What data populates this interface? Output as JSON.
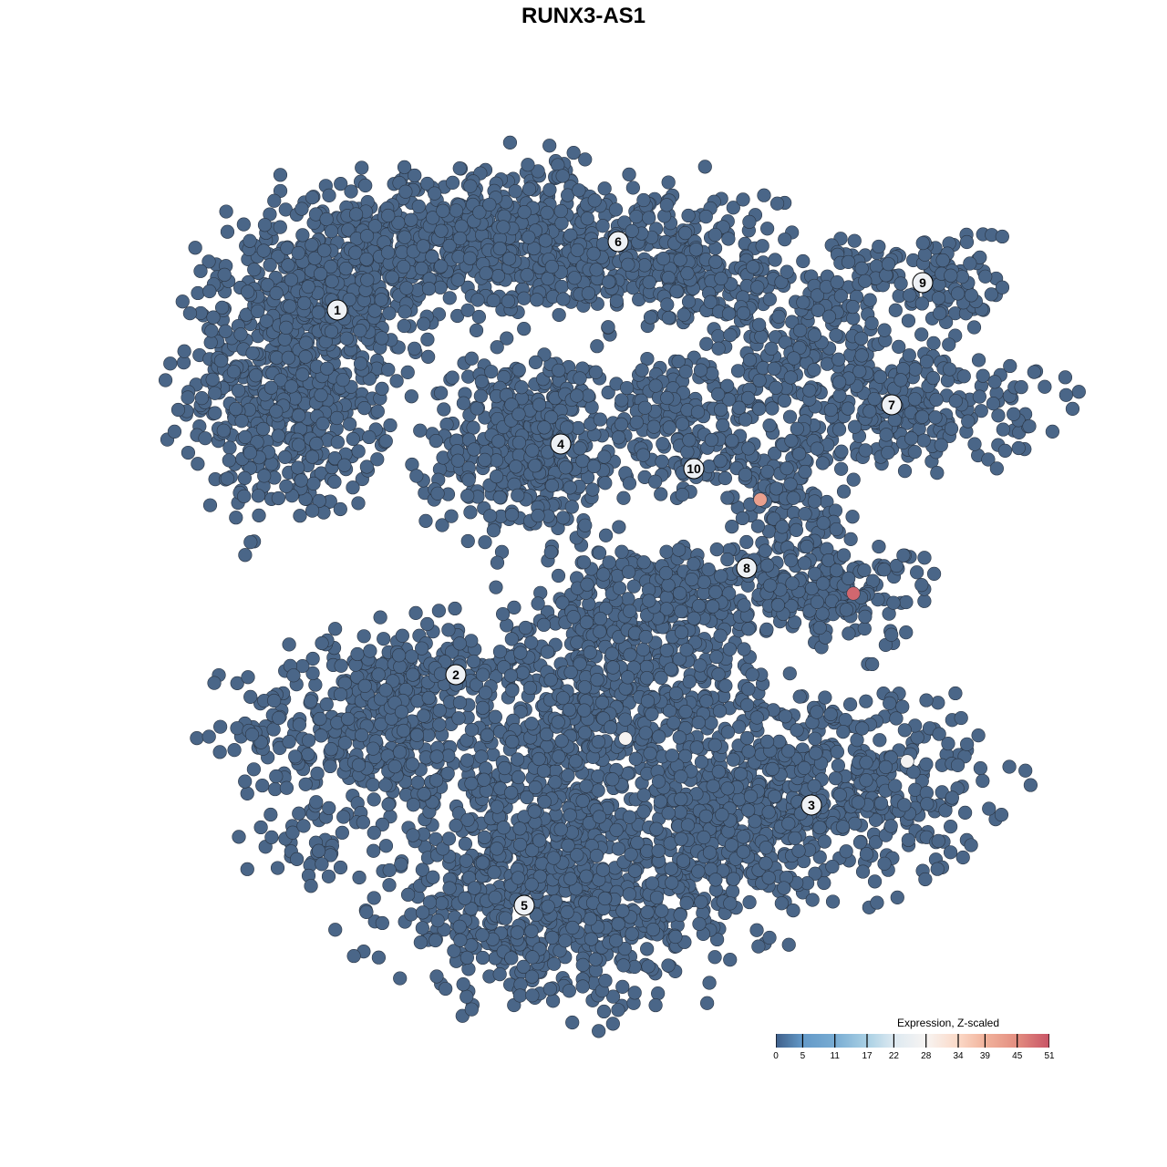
{
  "chart_data": {
    "type": "scatter",
    "title": "RUNX3-AS1",
    "xlabel": "",
    "ylabel": "",
    "grid": false,
    "axes_visible": false,
    "point_color_default": "#4a6688",
    "point_stroke": "#2b3645",
    "clusters": [
      {
        "label": "1",
        "label_pos": [
          -27,
          30
        ],
        "blobs": [
          {
            "center": [
              -32,
              22
            ],
            "sd": [
              5.5,
              7.5
            ],
            "n": 600
          },
          {
            "center": [
              -26,
              34
            ],
            "sd": [
              7,
              4.5
            ],
            "n": 300
          }
        ]
      },
      {
        "label": "2",
        "label_pos": [
          -14,
          -10
        ],
        "blobs": [
          {
            "center": [
              -24,
              -16
            ],
            "sd": [
              7,
              4.5
            ],
            "n": 350
          },
          {
            "center": [
              -17,
              -9
            ],
            "sd": [
              5,
              2.5
            ],
            "n": 100
          },
          {
            "center": [
              -30,
              -29
            ],
            "sd": [
              3.5,
              2
            ],
            "n": 40
          }
        ]
      },
      {
        "label": "3",
        "label_pos": [
          25,
          -24.3
        ],
        "blobs": [
          {
            "center": [
              26,
              -22
            ],
            "sd": [
              9,
              5.5
            ],
            "n": 500
          },
          {
            "center": [
              18,
              -28
            ],
            "sd": [
              4,
              4
            ],
            "n": 150
          }
        ]
      },
      {
        "label": "4",
        "label_pos": [
          -2.5,
          15.3
        ],
        "blobs": [
          {
            "center": [
              -6,
              15
            ],
            "sd": [
              5.5,
              5
            ],
            "n": 450
          }
        ]
      },
      {
        "label": "5",
        "label_pos": [
          -6.5,
          -35.3
        ],
        "blobs": [
          {
            "center": [
              -2,
              -36
            ],
            "sd": [
              10,
              5
            ],
            "n": 600
          },
          {
            "center": [
              -8,
              -28
            ],
            "sd": [
              6,
              5
            ],
            "n": 200
          },
          {
            "center": [
              2,
              -16
            ],
            "sd": [
              9,
              8
            ],
            "n": 700
          },
          {
            "center": [
              8,
              -5
            ],
            "sd": [
              6,
              4
            ],
            "n": 200
          }
        ]
      },
      {
        "label": "6",
        "label_pos": [
          3.8,
          37.5
        ],
        "blobs": [
          {
            "center": [
              -10,
              38
            ],
            "sd": [
              9,
              4
            ],
            "n": 500
          },
          {
            "center": [
              8,
              36
            ],
            "sd": [
              7,
              4
            ],
            "n": 250
          },
          {
            "center": [
              16,
              31
            ],
            "sd": [
              4,
              3
            ],
            "n": 80
          }
        ]
      },
      {
        "label": "7",
        "label_pos": [
          33.8,
          19.6
        ],
        "blobs": [
          {
            "center": [
              32,
              20
            ],
            "sd": [
              9,
              3.5
            ],
            "n": 300
          },
          {
            "center": [
              24,
              26
            ],
            "sd": [
              4,
              2.5
            ],
            "n": 80
          }
        ]
      },
      {
        "label": "8",
        "label_pos": [
          17.9,
          1.7
        ],
        "blobs": [
          {
            "center": [
              22,
              8
            ],
            "sd": [
              3.5,
              5
            ],
            "n": 150
          },
          {
            "center": [
              28,
              -1
            ],
            "sd": [
              5,
              2.5
            ],
            "n": 150
          },
          {
            "center": [
              12,
              0
            ],
            "sd": [
              6,
              2
            ],
            "n": 100
          }
        ]
      },
      {
        "label": "9",
        "label_pos": [
          37.2,
          33
        ],
        "blobs": [
          {
            "center": [
              35,
              33
            ],
            "sd": [
              6,
              3
            ],
            "n": 150
          }
        ]
      },
      {
        "label": "10",
        "label_pos": [
          12.1,
          12.6
        ],
        "blobs": [
          {
            "center": [
              12,
              16
            ],
            "sd": [
              4,
              4
            ],
            "n": 120
          },
          {
            "center": [
              10,
              21
            ],
            "sd": [
              6,
              2
            ],
            "n": 60
          }
        ]
      }
    ],
    "highlighted_points": [
      {
        "x": 19.4,
        "y": 9.2,
        "value": 42
      },
      {
        "x": 29.6,
        "y": -1.1,
        "value": 49
      },
      {
        "x": 4.6,
        "y": -17,
        "value": 28
      },
      {
        "x": 35.5,
        "y": -19.5,
        "value": 27
      }
    ],
    "colorbar": {
      "title": "Expression, Z-scaled",
      "range": [
        0,
        51
      ],
      "ticks": [
        "0",
        "5",
        "11",
        "17",
        "22",
        "28",
        "34",
        "39",
        "45",
        "51"
      ],
      "colors": [
        "#3f5f8a",
        "#6399c8",
        "#78acd3",
        "#a9d0e4",
        "#dde9f1",
        "#f7f4f2",
        "#fbd9c7",
        "#f1b39c",
        "#e38d80",
        "#c85466"
      ],
      "placement": "bottom-right"
    }
  }
}
